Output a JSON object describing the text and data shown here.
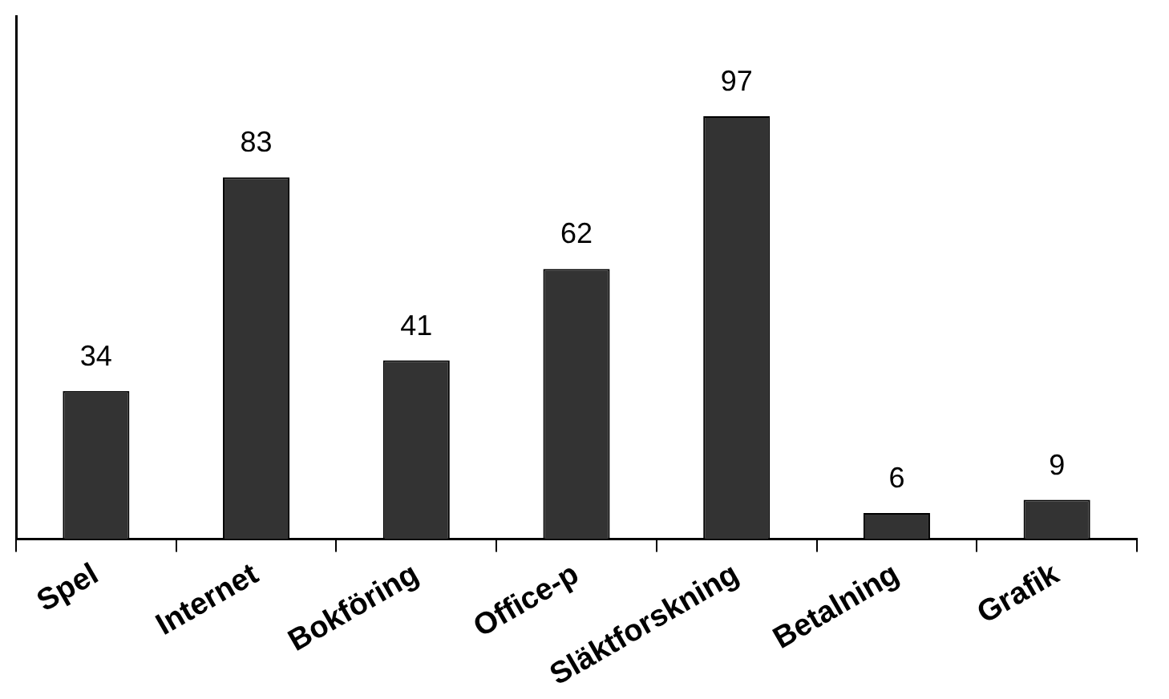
{
  "chart_data": {
    "type": "bar",
    "categories": [
      "Spel",
      "Internet",
      "Bokföring",
      "Office-p",
      "Släktforskning",
      "Betalning",
      "Grafik"
    ],
    "values": [
      34,
      83,
      41,
      62,
      97,
      6,
      9
    ],
    "color": "#333333",
    "data_labels": true,
    "grid": false,
    "legend": false,
    "tick_labels": "x"
  }
}
